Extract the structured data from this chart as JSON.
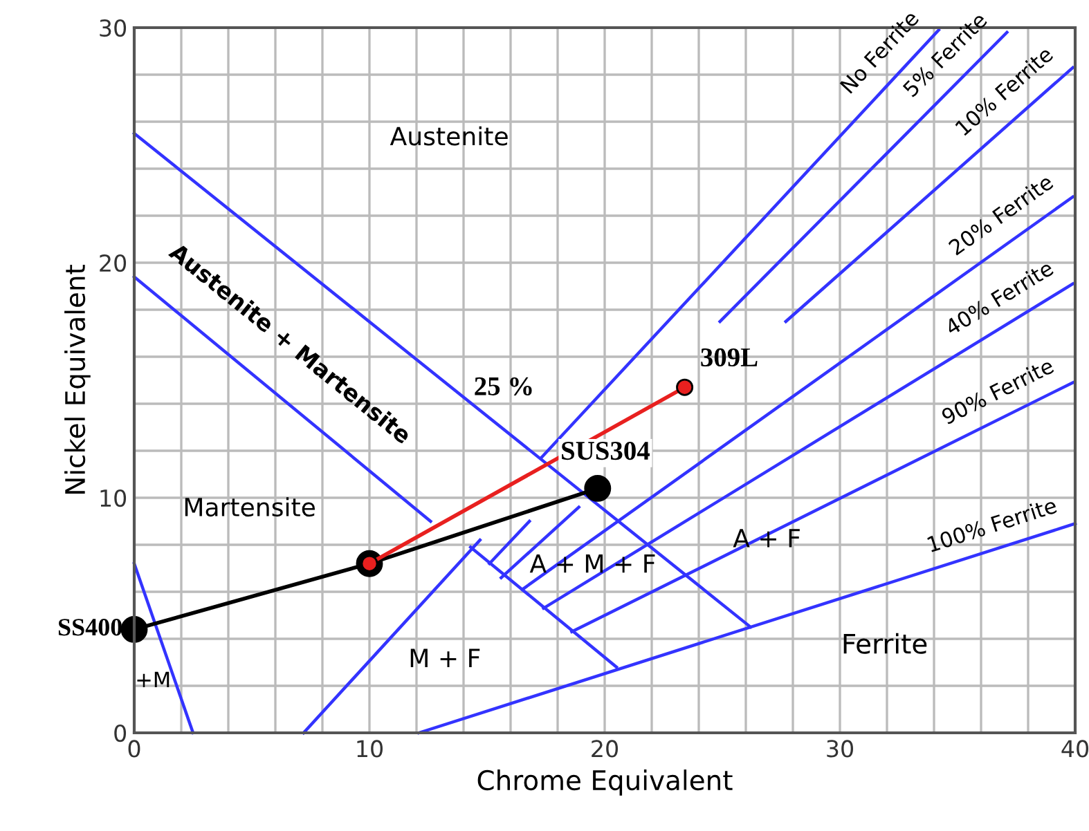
{
  "chart_data": {
    "type": "line",
    "xlabel": "Chrome Equivalent",
    "ylabel": "Nickel Equivalent",
    "xlim": [
      0,
      40
    ],
    "ylim": [
      0,
      30
    ],
    "xticks": [
      0,
      {
        "value": 2,
        "label": null
      },
      {
        "value": 4,
        "label": null
      },
      {
        "value": 6,
        "label": null
      },
      {
        "value": 8,
        "label": null
      },
      10,
      {
        "value": 12,
        "label": null
      },
      {
        "value": 14,
        "label": null
      },
      {
        "value": 16,
        "label": null
      },
      {
        "value": 18,
        "label": null
      },
      20,
      {
        "value": 22,
        "label": null
      },
      {
        "value": 24,
        "label": null
      },
      {
        "value": 26,
        "label": null
      },
      {
        "value": 28,
        "label": null
      },
      30,
      {
        "value": 32,
        "label": null
      },
      {
        "value": 34,
        "label": null
      },
      {
        "value": 36,
        "label": null
      },
      {
        "value": 38,
        "label": null
      },
      40
    ],
    "yticks": [
      0,
      {
        "value": 2,
        "label": null
      },
      {
        "value": 4,
        "label": null
      },
      {
        "value": 6,
        "label": null
      },
      {
        "value": 8,
        "label": null
      },
      10,
      {
        "value": 12,
        "label": null
      },
      {
        "value": 14,
        "label": null
      },
      {
        "value": 16,
        "label": null
      },
      {
        "value": 18,
        "label": null
      },
      20,
      {
        "value": 22,
        "label": null
      },
      {
        "value": 24,
        "label": null
      },
      {
        "value": 26,
        "label": null
      },
      {
        "value": 28,
        "label": null
      },
      30
    ],
    "grid": true,
    "legend": false,
    "line_style": "solid",
    "marker": "none",
    "series": [
      {
        "color": "#3333ff",
        "x": [
          0,
          26.2
        ],
        "values": [
          25.5,
          4.5
        ]
      },
      {
        "color": "#3333ff",
        "x": [
          0,
          12.6
        ],
        "values": [
          19.4,
          9.0
        ]
      },
      {
        "color": "#3333ff",
        "x": [
          0,
          2.5
        ],
        "values": [
          7.2,
          0
        ]
      },
      {
        "color": "#3333ff",
        "x": [
          7.2,
          14.7
        ],
        "values": [
          0,
          8.2
        ]
      },
      {
        "color": "#3333ff",
        "x": [
          14.3,
          20.5
        ],
        "values": [
          7.9,
          2.8
        ]
      },
      {
        "color": "#3333ff",
        "x": [
          15.1,
          16.8
        ],
        "values": [
          7.2,
          9.0
        ]
      },
      {
        "color": "#3333ff",
        "x": [
          15.6,
          18.9
        ],
        "values": [
          6.6,
          9.6
        ]
      },
      {
        "name": "No Ferrite",
        "color": "#3333ff",
        "x": [
          17.3,
          34.2
        ],
        "values": [
          11.7,
          29.9
        ]
      },
      {
        "name": "5% Ferrite",
        "color": "#3333ff",
        "x": [
          24.9,
          37.1
        ],
        "values": [
          17.5,
          29.8
        ]
      },
      {
        "name": "10% Ferrite",
        "color": "#3333ff",
        "x": [
          27.7,
          39.9
        ],
        "values": [
          17.5,
          28.3
        ]
      },
      {
        "name": "20% Ferrite",
        "color": "#3333ff",
        "x": [
          16.5,
          39.9
        ],
        "values": [
          6.1,
          22.8
        ]
      },
      {
        "name": "40% Ferrite",
        "color": "#3333ff",
        "x": [
          17.4,
          39.9
        ],
        "values": [
          5.3,
          19.1
        ]
      },
      {
        "name": "90% Ferrite",
        "color": "#3333ff",
        "x": [
          18.6,
          39.9
        ],
        "values": [
          4.3,
          14.9
        ]
      },
      {
        "name": "100% Ferrite",
        "color": "#3333ff",
        "x": [
          12.1,
          40
        ],
        "values": [
          0,
          8.9
        ]
      },
      {
        "color": "#000000",
        "x": [
          0,
          10.0,
          19.7
        ],
        "values": [
          4.4,
          7.2,
          10.4
        ],
        "marker": "circle"
      },
      {
        "color": "#e8201f",
        "x": [
          10.0,
          23.4
        ],
        "values": [
          7.2,
          14.7
        ],
        "marker": "circle"
      }
    ],
    "annotations": [
      "Austenite",
      "Austenite + Martensite",
      "Martensite",
      "A + F",
      "A + M + F",
      "M + F",
      "Ferrite",
      "+M",
      {
        "text": "SS400",
        "x": 0,
        "y": 4.4
      },
      {
        "text": "SUS304",
        "x": 19.7,
        "y": 10.4
      },
      {
        "text": "309L",
        "x": 23.4,
        "y": 14.7
      },
      {
        "text": "25 %",
        "x": 16.7,
        "y": 12.0
      }
    ]
  }
}
